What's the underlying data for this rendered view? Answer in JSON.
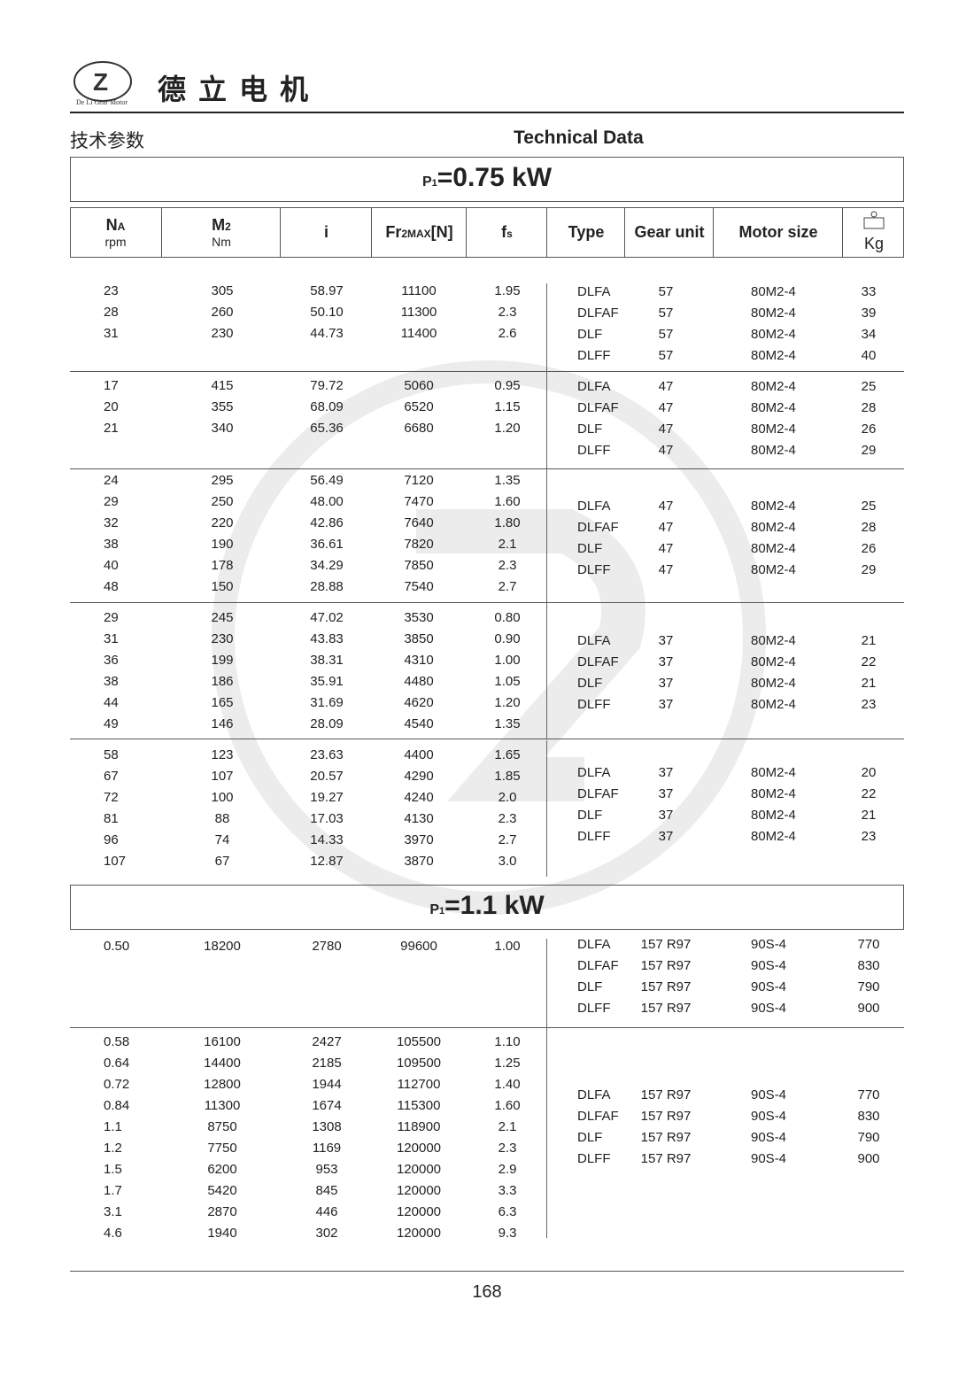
{
  "header": {
    "brand_cn": "德立电机",
    "logo_text": "De Li Gear Motor",
    "section_cn": "技术参数",
    "section_en": "Technical Data"
  },
  "watermark": {
    "text": "De Li Gear Motor",
    "color": "#e6e6e6"
  },
  "columns": [
    {
      "main": "N",
      "sub_letter": "A",
      "unit": "rpm"
    },
    {
      "main": "M",
      "sub_letter": "2",
      "unit": "Nm"
    },
    {
      "main": "i"
    },
    {
      "main": "Fr",
      "sub_letter": "2MAX",
      "suffix": "[N]"
    },
    {
      "main": "f",
      "sub_letter": "s"
    },
    {
      "main": "Type"
    },
    {
      "main": "Gear unit"
    },
    {
      "main": "Motor size"
    },
    {
      "main": "Kg",
      "icon": "weight-icon"
    }
  ],
  "sections": [
    {
      "power_prefix": "P",
      "power_sub": "1",
      "power_value": "=0.75 kW",
      "groups": [
        {
          "left": [
            [
              "23",
              "305",
              "58.97",
              "11100",
              "1.95"
            ],
            [
              "28",
              "260",
              "50.10",
              "11300",
              "2.3"
            ],
            [
              "31",
              "230",
              "44.73",
              "11400",
              "2.6"
            ]
          ],
          "right": [
            [
              "DLFA",
              "57",
              "80M2-4",
              "33"
            ],
            [
              "DLFAF",
              "57",
              "80M2-4",
              "39"
            ],
            [
              "DLF",
              "57",
              "80M2-4",
              "34"
            ],
            [
              "DLFF",
              "57",
              "80M2-4",
              "40"
            ]
          ]
        },
        {
          "left": [
            [
              "17",
              "415",
              "79.72",
              "5060",
              "0.95"
            ],
            [
              "20",
              "355",
              "68.09",
              "6520",
              "1.15"
            ],
            [
              "21",
              "340",
              "65.36",
              "6680",
              "1.20"
            ]
          ],
          "right": [
            [
              "DLFA",
              "47",
              "80M2-4",
              "25"
            ],
            [
              "DLFAF",
              "47",
              "80M2-4",
              "28"
            ],
            [
              "DLF",
              "47",
              "80M2-4",
              "26"
            ],
            [
              "DLFF",
              "47",
              "80M2-4",
              "29"
            ]
          ]
        },
        {
          "left": [
            [
              "24",
              "295",
              "56.49",
              "7120",
              "1.35"
            ],
            [
              "29",
              "250",
              "48.00",
              "7470",
              "1.60"
            ],
            [
              "32",
              "220",
              "42.86",
              "7640",
              "1.80"
            ],
            [
              "38",
              "190",
              "36.61",
              "7820",
              "2.1"
            ],
            [
              "40",
              "178",
              "34.29",
              "7850",
              "2.3"
            ],
            [
              "48",
              "150",
              "28.88",
              "7540",
              "2.7"
            ]
          ],
          "right": [
            [
              "DLFA",
              "47",
              "80M2-4",
              "25"
            ],
            [
              "DLFAF",
              "47",
              "80M2-4",
              "28"
            ],
            [
              "DLF",
              "47",
              "80M2-4",
              "26"
            ],
            [
              "DLFF",
              "47",
              "80M2-4",
              "29"
            ]
          ]
        },
        {
          "left": [
            [
              "29",
              "245",
              "47.02",
              "3530",
              "0.80"
            ],
            [
              "31",
              "230",
              "43.83",
              "3850",
              "0.90"
            ],
            [
              "36",
              "199",
              "38.31",
              "4310",
              "1.00"
            ],
            [
              "38",
              "186",
              "35.91",
              "4480",
              "1.05"
            ],
            [
              "44",
              "165",
              "31.69",
              "4620",
              "1.20"
            ],
            [
              "49",
              "146",
              "28.09",
              "4540",
              "1.35"
            ]
          ],
          "right": [
            [
              "DLFA",
              "37",
              "80M2-4",
              "21"
            ],
            [
              "DLFAF",
              "37",
              "80M2-4",
              "22"
            ],
            [
              "DLF",
              "37",
              "80M2-4",
              "21"
            ],
            [
              "DLFF",
              "37",
              "80M2-4",
              "23"
            ]
          ]
        },
        {
          "left": [
            [
              "58",
              "123",
              "23.63",
              "4400",
              "1.65"
            ],
            [
              "67",
              "107",
              "20.57",
              "4290",
              "1.85"
            ],
            [
              "72",
              "100",
              "19.27",
              "4240",
              "2.0"
            ],
            [
              "81",
              "88",
              "17.03",
              "4130",
              "2.3"
            ],
            [
              "96",
              "74",
              "14.33",
              "3970",
              "2.7"
            ],
            [
              "107",
              "67",
              "12.87",
              "3870",
              "3.0"
            ]
          ],
          "right": [
            [
              "DLFA",
              "37",
              "80M2-4",
              "20"
            ],
            [
              "DLFAF",
              "37",
              "80M2-4",
              "22"
            ],
            [
              "DLF",
              "37",
              "80M2-4",
              "21"
            ],
            [
              "DLFF",
              "37",
              "80M2-4",
              "23"
            ]
          ]
        }
      ]
    },
    {
      "power_prefix": "P",
      "power_sub": "1",
      "power_value": "=1.1 kW",
      "groups": [
        {
          "left": [
            [
              "0.50",
              "18200",
              "2780",
              "99600",
              "1.00"
            ]
          ],
          "right": [
            [
              "DLFA",
              "157 R97",
              "90S-4",
              "770"
            ],
            [
              "DLFAF",
              "157 R97",
              "90S-4",
              "830"
            ],
            [
              "DLF",
              "157 R97",
              "90S-4",
              "790"
            ],
            [
              "DLFF",
              "157 R97",
              "90S-4",
              "900"
            ]
          ]
        },
        {
          "left": [
            [
              "0.58",
              "16100",
              "2427",
              "105500",
              "1.10"
            ],
            [
              "0.64",
              "14400",
              "2185",
              "109500",
              "1.25"
            ],
            [
              "0.72",
              "12800",
              "1944",
              "112700",
              "1.40"
            ],
            [
              "0.84",
              "11300",
              "1674",
              "115300",
              "1.60"
            ],
            [
              "1.1",
              "8750",
              "1308",
              "118900",
              "2.1"
            ],
            [
              "1.2",
              "7750",
              "1169",
              "120000",
              "2.3"
            ],
            [
              "1.5",
              "6200",
              "953",
              "120000",
              "2.9"
            ],
            [
              "1.7",
              "5420",
              "845",
              "120000",
              "3.3"
            ],
            [
              "3.1",
              "2870",
              "446",
              "120000",
              "6.3"
            ],
            [
              "4.6",
              "1940",
              "302",
              "120000",
              "9.3"
            ]
          ],
          "right": [
            [
              "DLFA",
              "157 R97",
              "90S-4",
              "770"
            ],
            [
              "DLFAF",
              "157 R97",
              "90S-4",
              "830"
            ],
            [
              "DLF",
              "157 R97",
              "90S-4",
              "790"
            ],
            [
              "DLFF",
              "157 R97",
              "90S-4",
              "900"
            ]
          ]
        }
      ]
    }
  ],
  "footer": {
    "page_number": "168"
  }
}
